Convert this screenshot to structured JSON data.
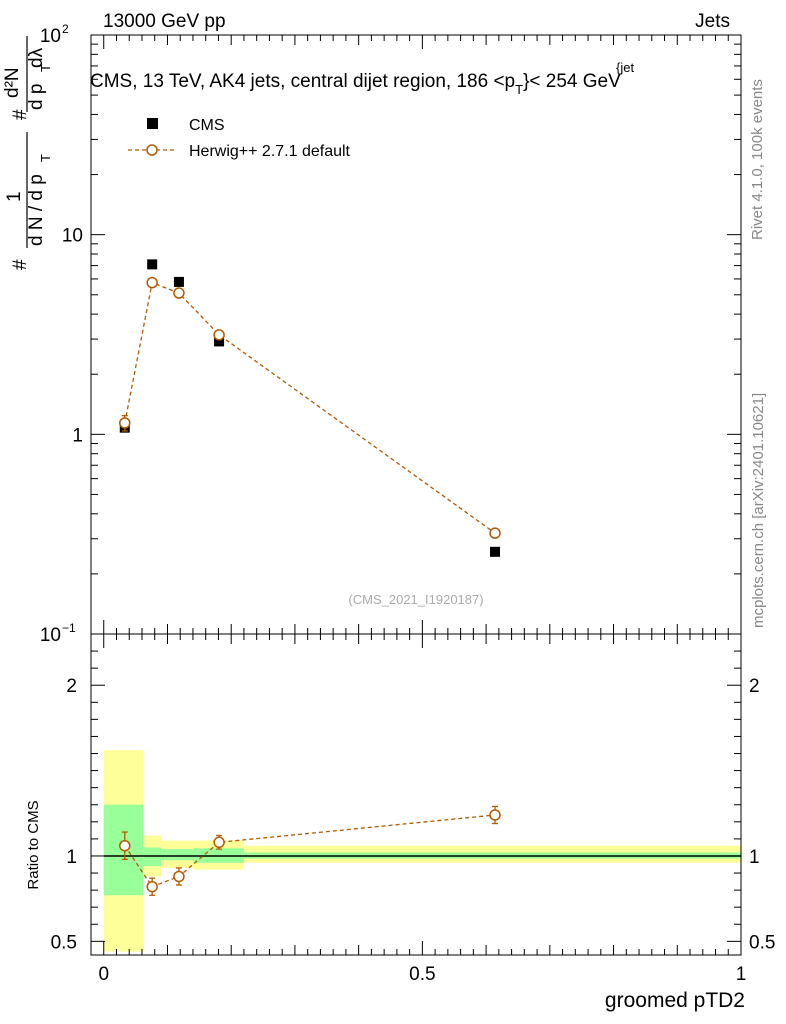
{
  "header": {
    "energy_label": "13000 GeV pp",
    "process_label": "Jets",
    "side_rivet": "Rivet 4.1.0,  100k events",
    "side_mcplots": "mcplots.cern.ch [arXiv:2401.10621]"
  },
  "chart_data": [
    {
      "type": "scatter",
      "title": "CMS, 13 TeV, AK4 jets, central dijet region, 186 <p",
      "title_sub": "T",
      "title_sup": "{jet",
      "title_end": "}< 254 GeV",
      "watermark": "(CMS_2021_I1920187)",
      "yscale": "log",
      "ylim": [
        0.1,
        100
      ],
      "xlim": [
        -0.02,
        1.0
      ],
      "ytick_labels": [
        "1",
        "10"
      ],
      "ytick_exp_labels": [
        {
          "base": "10",
          "exp": "−1"
        },
        {
          "base": "10",
          "exp": "2"
        }
      ],
      "ylabel_parts": {
        "hash": "#",
        "one": "1",
        "dN": "d N / d p",
        "T": "T",
        "d2N": "d²N",
        "dpTdl": "d p",
        "lambda": " dλ"
      },
      "legend": {
        "position": "top-left",
        "entries": [
          "CMS",
          "Herwig++ 2.7.1 default"
        ]
      },
      "series": [
        {
          "name": "CMS",
          "marker": "square",
          "color": "#000000",
          "x": [
            0.033,
            0.076,
            0.118,
            0.181,
            0.614
          ],
          "y": [
            1.08,
            7.1,
            5.8,
            2.92,
            0.258
          ]
        },
        {
          "name": "Herwig++ 2.7.1 default",
          "marker": "open-circle",
          "color": "#b35900",
          "x": [
            0.033,
            0.076,
            0.118,
            0.181,
            0.614
          ],
          "y": [
            1.14,
            5.75,
            5.1,
            3.15,
            0.32
          ],
          "yerr": [
            0.1,
            0.25,
            0.2,
            0.12,
            0.015
          ]
        }
      ]
    },
    {
      "type": "scatter",
      "ylabel": "Ratio to CMS",
      "xlabel": "groomed pTD2",
      "ylim": [
        0.42,
        2.3
      ],
      "xlim": [
        -0.02,
        1.0
      ],
      "ytick_labels": [
        "0.5",
        "1",
        "2"
      ],
      "xtick_labels": [
        "0",
        "0.5",
        "1"
      ],
      "bands": {
        "bins": [
          [
            0.0,
            0.062
          ],
          [
            0.062,
            0.09
          ],
          [
            0.09,
            0.14
          ],
          [
            0.14,
            0.22
          ],
          [
            0.22,
            1.0
          ]
        ],
        "stat_lo": [
          0.77,
          0.94,
          0.975,
          0.96,
          0.985
        ],
        "stat_hi": [
          1.3,
          1.05,
          1.04,
          1.045,
          1.02
        ],
        "total_lo": [
          0.44,
          0.88,
          0.93,
          0.92,
          0.96
        ],
        "total_hi": [
          1.62,
          1.12,
          1.09,
          1.09,
          1.06
        ],
        "stat_color": "#99ff99",
        "total_color": "#ffff99"
      },
      "series": [
        {
          "name": "Herwig++ 2.7.1 default",
          "marker": "open-circle",
          "color": "#b35900",
          "x": [
            0.033,
            0.076,
            0.118,
            0.181,
            0.614
          ],
          "y": [
            1.06,
            0.82,
            0.88,
            1.08,
            1.24
          ],
          "yerr": [
            0.08,
            0.05,
            0.05,
            0.04,
            0.05
          ]
        }
      ]
    }
  ]
}
